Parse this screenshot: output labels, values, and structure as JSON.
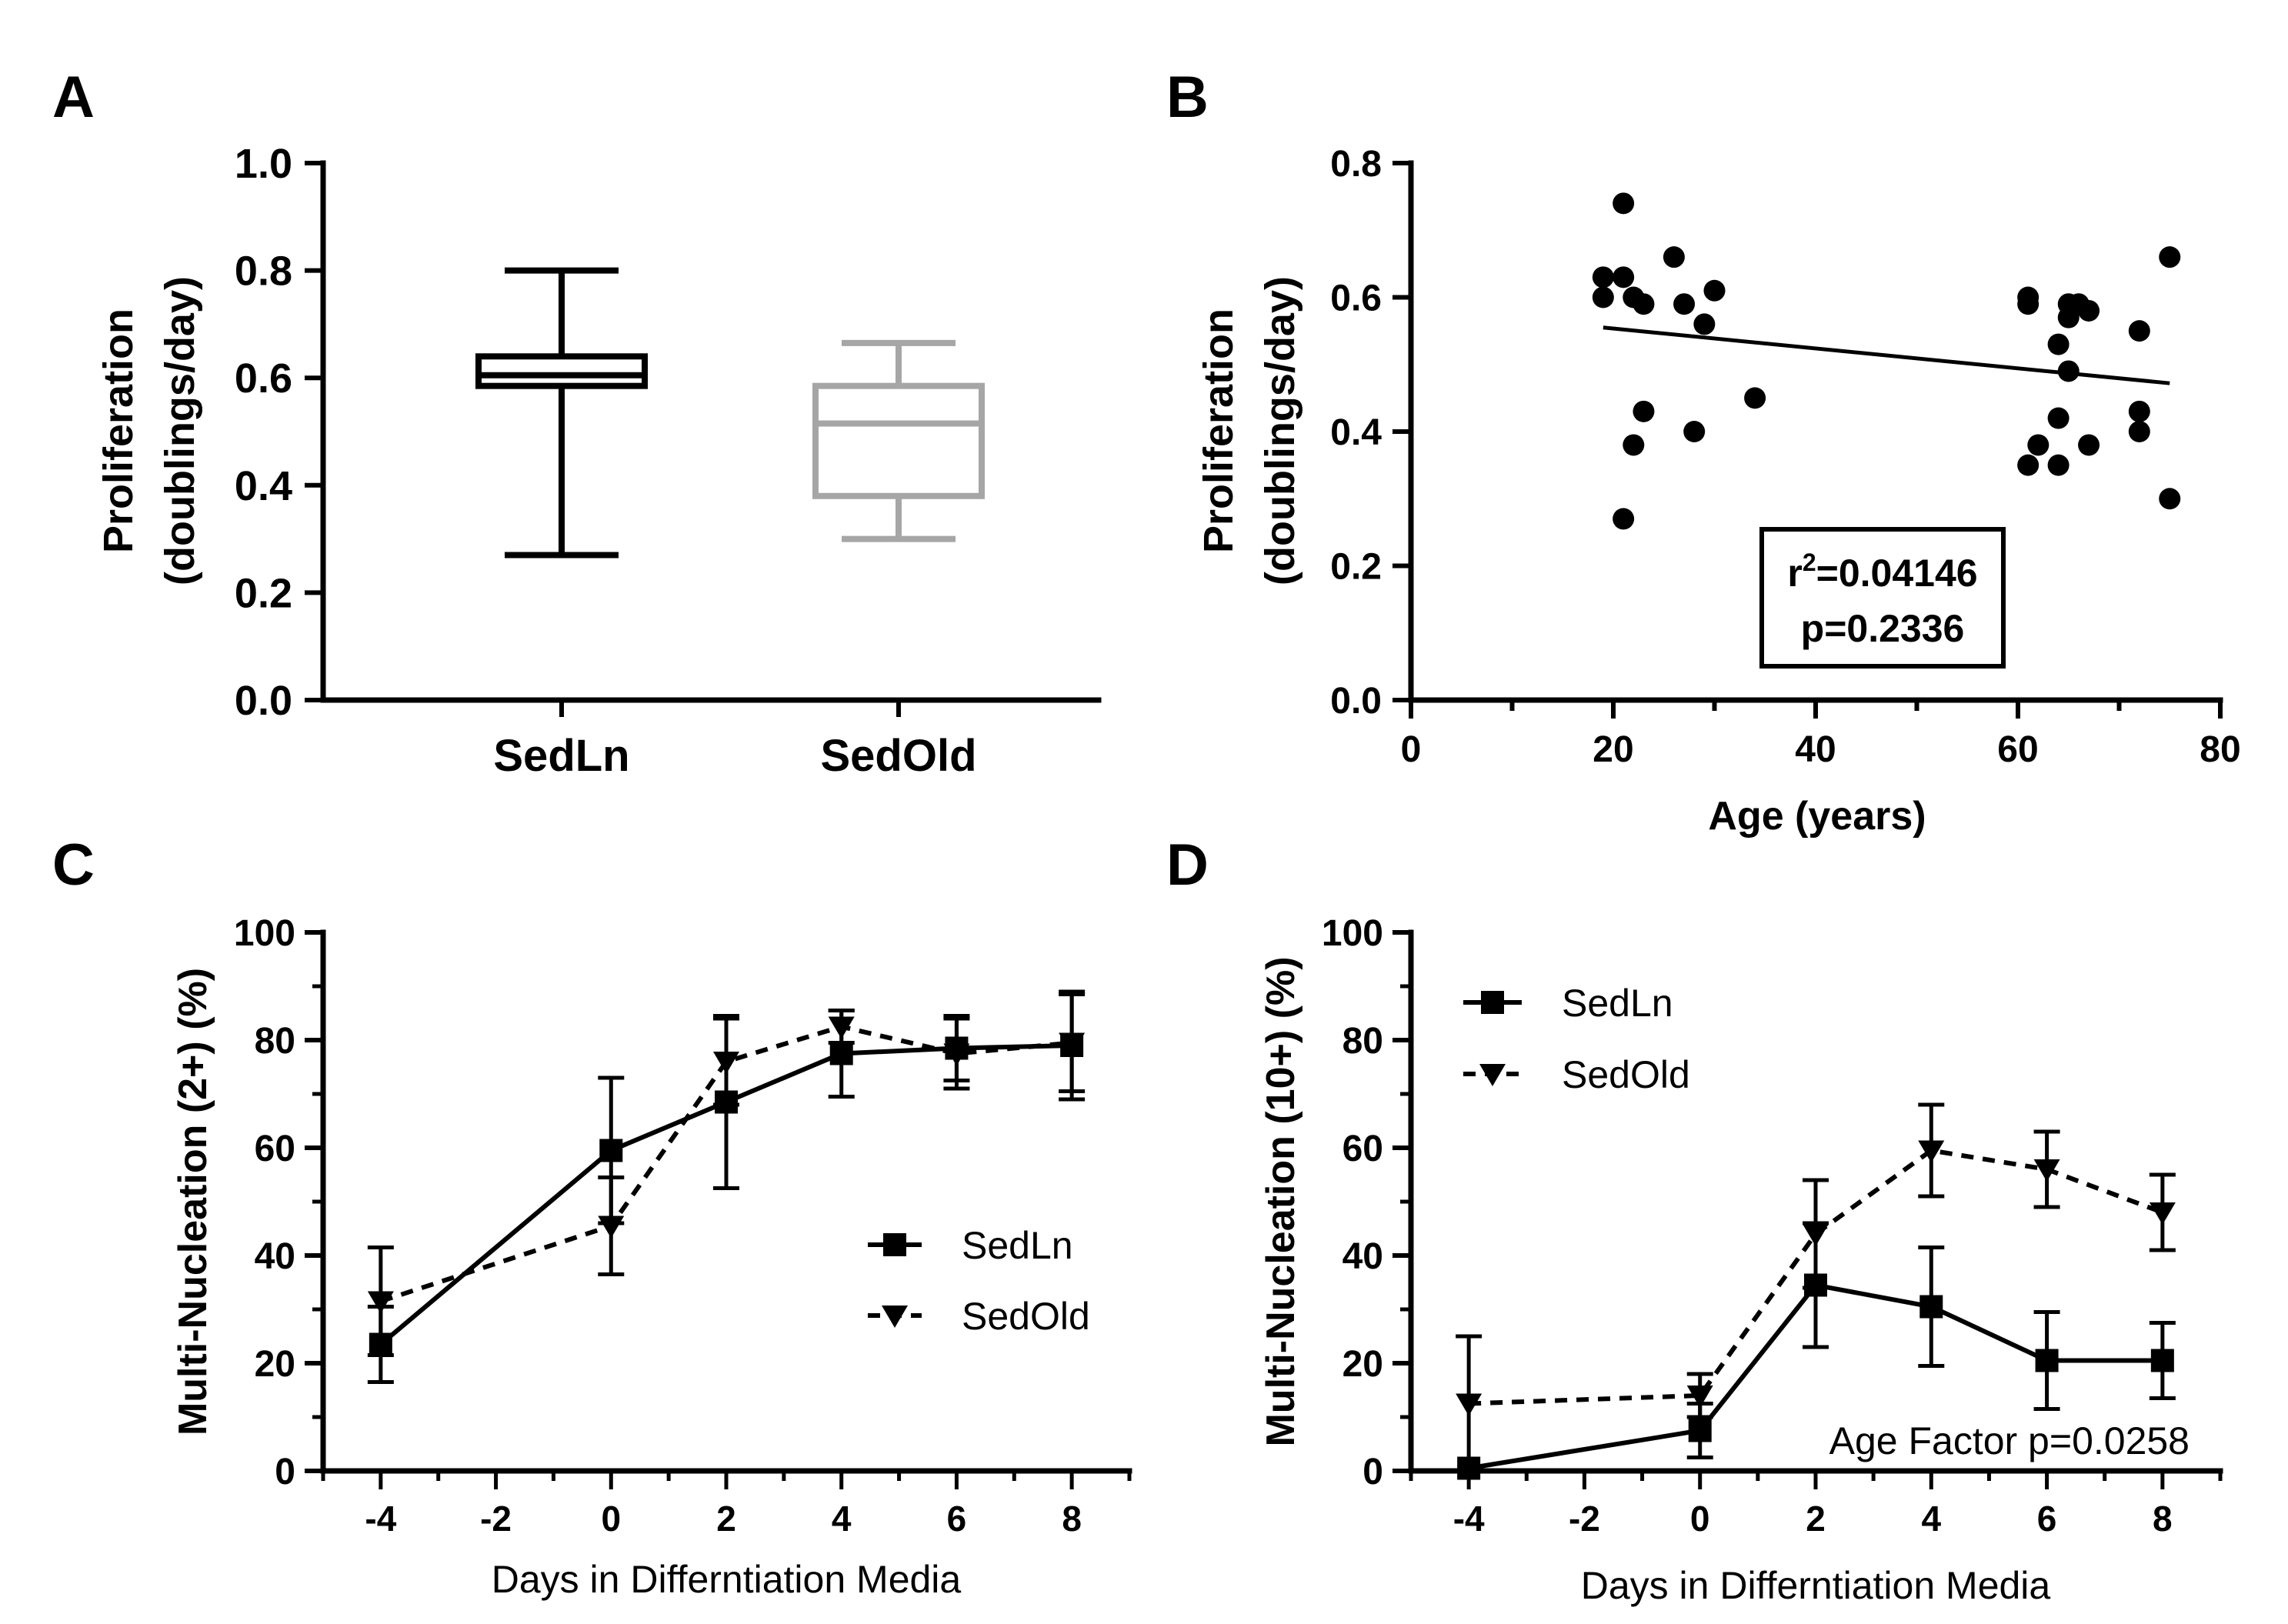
{
  "chart_data": [
    {
      "panel": "A",
      "type": "box",
      "xlabel": "",
      "ylabel_line1": "Proliferation",
      "ylabel_line2": "(doublings/day)",
      "ylim": [
        0,
        1.0
      ],
      "yticks": [
        "0.0",
        "0.2",
        "0.4",
        "0.6",
        "0.8",
        "1.0"
      ],
      "categories": [
        "SedLn",
        "SedOld"
      ],
      "boxes": [
        {
          "name": "SedLn",
          "min": 0.27,
          "q1": 0.585,
          "median": 0.605,
          "q3": 0.64,
          "max": 0.8,
          "color": "#000000"
        },
        {
          "name": "SedOld",
          "min": 0.3,
          "q1": 0.38,
          "median": 0.515,
          "q3": 0.585,
          "max": 0.665,
          "color": "#a6a6a6"
        }
      ]
    },
    {
      "panel": "B",
      "type": "scatter",
      "xlabel": "Age (years)",
      "ylabel_line1": "Proliferation",
      "ylabel_line2": "(doublings/day)",
      "xlim": [
        0,
        80
      ],
      "ylim": [
        0,
        0.8
      ],
      "xticks": [
        "0",
        "20",
        "40",
        "60",
        "80"
      ],
      "yticks": [
        "0.0",
        "0.2",
        "0.4",
        "0.6",
        "0.8"
      ],
      "points": [
        [
          19,
          0.63
        ],
        [
          19,
          0.6
        ],
        [
          21,
          0.74
        ],
        [
          21,
          0.63
        ],
        [
          21,
          0.27
        ],
        [
          22,
          0.6
        ],
        [
          22,
          0.38
        ],
        [
          23,
          0.59
        ],
        [
          23,
          0.43
        ],
        [
          26,
          0.66
        ],
        [
          27,
          0.59
        ],
        [
          28,
          0.4
        ],
        [
          29,
          0.56
        ],
        [
          30,
          0.61
        ],
        [
          34,
          0.45
        ],
        [
          61,
          0.6
        ],
        [
          61,
          0.59
        ],
        [
          61,
          0.35
        ],
        [
          62,
          0.38
        ],
        [
          64,
          0.53
        ],
        [
          64,
          0.42
        ],
        [
          64,
          0.35
        ],
        [
          65,
          0.59
        ],
        [
          65,
          0.57
        ],
        [
          65,
          0.49
        ],
        [
          66,
          0.59
        ],
        [
          67,
          0.58
        ],
        [
          67,
          0.38
        ],
        [
          72,
          0.55
        ],
        [
          72,
          0.43
        ],
        [
          72,
          0.4
        ],
        [
          75,
          0.66
        ],
        [
          75,
          0.3
        ]
      ],
      "regression": {
        "x": [
          19,
          75
        ],
        "y": [
          0.555,
          0.472
        ]
      },
      "stats": {
        "r2_prefix": "r",
        "r2_sup": "2",
        "r2_value": "=0.04146",
        "p_text": "p=0.2336"
      }
    },
    {
      "panel": "C",
      "type": "line",
      "xlabel": "Days in Differntiation Media",
      "ylabel": "Multi-Nucleation (2+) (%)",
      "xlim": [
        -5,
        9
      ],
      "ylim": [
        0,
        100
      ],
      "xticks": [
        "-4",
        "-2",
        "0",
        "2",
        "4",
        "6",
        "8"
      ],
      "yticks": [
        "0",
        "20",
        "40",
        "60",
        "80",
        "100"
      ],
      "x": [
        -4,
        0,
        2,
        4,
        6,
        8
      ],
      "series": [
        {
          "name": "SedLn",
          "marker": "square",
          "dash": "solid",
          "values": [
            23.5,
            59.5,
            68.5,
            77.5,
            78.5,
            79.0
          ],
          "errors": [
            7,
            13.5,
            16,
            8,
            6,
            10
          ]
        },
        {
          "name": "SedOld",
          "marker": "triangle-down",
          "dash": "dashed",
          "values": [
            31.5,
            45.5,
            76.0,
            82.5,
            77.5,
            79.5
          ],
          "errors": [
            10,
            9,
            8,
            3,
            6.5,
            9
          ]
        }
      ],
      "legend": [
        "SedLn",
        "SedOld"
      ]
    },
    {
      "panel": "D",
      "type": "line",
      "xlabel": "Days in Differntiation Media",
      "ylabel": "Multi-Nucleation (10+) (%)",
      "xlim": [
        -5,
        9
      ],
      "ylim": [
        0,
        100
      ],
      "xticks": [
        "-4",
        "-2",
        "0",
        "2",
        "4",
        "6",
        "8"
      ],
      "yticks": [
        "0",
        "20",
        "40",
        "60",
        "80",
        "100"
      ],
      "x": [
        -4,
        0,
        2,
        4,
        6,
        8
      ],
      "series": [
        {
          "name": "SedLn",
          "marker": "square",
          "dash": "solid",
          "values": [
            0.5,
            7.5,
            34.5,
            30.5,
            20.5,
            20.5
          ],
          "errors": [
            0,
            5,
            11.5,
            11,
            9,
            7
          ]
        },
        {
          "name": "SedOld",
          "marker": "triangle-down",
          "dash": "dashed",
          "values": [
            12.5,
            14.0,
            44.0,
            59.5,
            56.0,
            48.0
          ],
          "errors": [
            12.5,
            4,
            10,
            8.5,
            7,
            7
          ]
        }
      ],
      "legend": [
        "SedLn",
        "SedOld"
      ],
      "annotation": "Age Factor p=0.0258"
    }
  ]
}
